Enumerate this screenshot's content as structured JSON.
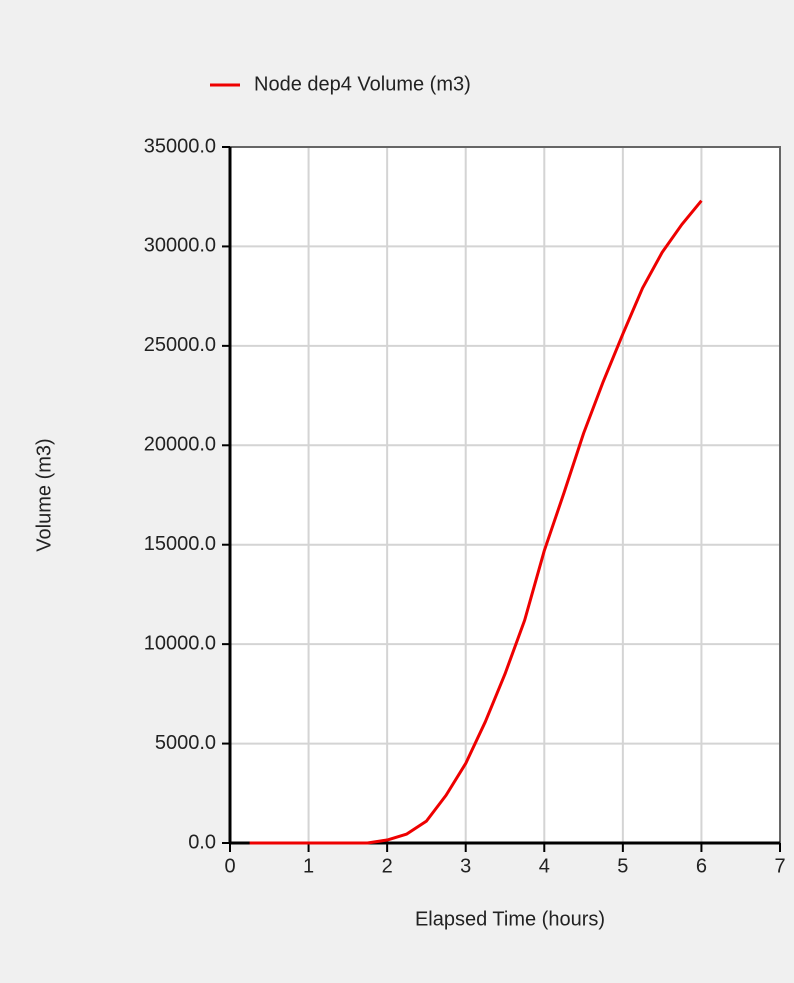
{
  "chart_data": {
    "type": "line",
    "x_label": "Elapsed Time (hours)",
    "y_label": "Volume (m3)",
    "x": [
      0.25,
      1,
      1.75,
      2,
      2.25,
      2.5,
      2.75,
      3,
      3.25,
      3.5,
      3.75,
      4,
      4.25,
      4.5,
      4.75,
      5,
      5.25,
      5.5,
      5.75,
      6
    ],
    "series": [
      {
        "name": "Node dep4 Volume (m3)",
        "color": "#ee0000",
        "values": [
          0,
          0,
          0,
          150,
          450,
          1100,
          2400,
          4000,
          6100,
          8500,
          11200,
          14700,
          17600,
          20600,
          23200,
          25600,
          27900,
          29700,
          31100,
          32300
        ]
      }
    ],
    "xlim": [
      0,
      7
    ],
    "xticks": [
      0,
      1,
      2,
      3,
      4,
      5,
      6,
      7
    ],
    "ylim": [
      0,
      35000
    ],
    "yticks": [
      {
        "value": 0,
        "label": "0.0"
      },
      {
        "value": 5000,
        "label": "5000.0"
      },
      {
        "value": 10000,
        "label": "10000.0"
      },
      {
        "value": 15000,
        "label": "15000.0"
      },
      {
        "value": 20000,
        "label": "20000.0"
      },
      {
        "value": 25000,
        "label": "25000.0"
      },
      {
        "value": 30000,
        "label": "30000.0"
      },
      {
        "value": 35000,
        "label": "35000.0"
      }
    ],
    "grid": true,
    "legend": "top"
  }
}
